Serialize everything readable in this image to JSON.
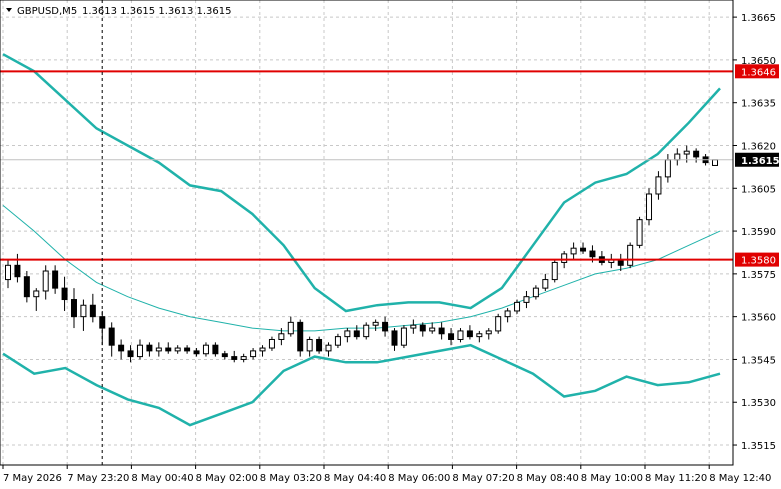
{
  "header": {
    "symbol": "GBPUSD,M5",
    "ohlc": "1.3613 1.3615 1.3613 1.3615",
    "dropdown_icon": "triangle-down-icon"
  },
  "colors": {
    "grid": "#c8c8c8",
    "band": "#20b2aa",
    "level": "#e00000",
    "candle": "#000000",
    "price_label_bg": "#000000"
  },
  "chart_data": {
    "type": "candlestick",
    "ylim": [
      1.3508,
      1.3671
    ],
    "y_ticks": [
      "1.3665",
      "1.3650",
      "1.3635",
      "1.3620",
      "1.3605",
      "1.3590",
      "1.3575",
      "1.3560",
      "1.3545",
      "1.3530",
      "1.3515"
    ],
    "x_ticks": [
      "7 May 2026",
      "7 May 23:20",
      "8 May 00:40",
      "8 May 02:00",
      "8 May 03:20",
      "8 May 04:40",
      "8 May 06:00",
      "8 May 07:20",
      "8 May 08:40",
      "8 May 10:00",
      "8 May 11:20",
      "8 May 12:40"
    ],
    "levels": [
      {
        "value": 1.3646,
        "label": "1.3646"
      },
      {
        "value": 1.358,
        "label": "1.3580"
      }
    ],
    "current_price": {
      "value": 1.3615,
      "label": "1.3615"
    },
    "crosshair_x_label": "7 May 23:20",
    "candles": [
      [
        1.3573,
        1.358,
        1.357,
        1.3578
      ],
      [
        1.3578,
        1.3582,
        1.3572,
        1.3574
      ],
      [
        1.3574,
        1.3576,
        1.3565,
        1.3567
      ],
      [
        1.3567,
        1.357,
        1.3562,
        1.3569
      ],
      [
        1.3569,
        1.3578,
        1.3566,
        1.3576
      ],
      [
        1.3576,
        1.3578,
        1.3568,
        1.357
      ],
      [
        1.357,
        1.3574,
        1.3562,
        1.3566
      ],
      [
        1.3566,
        1.357,
        1.3556,
        1.356
      ],
      [
        1.356,
        1.3566,
        1.3555,
        1.3564
      ],
      [
        1.3564,
        1.3568,
        1.3558,
        1.356
      ],
      [
        1.356,
        1.3562,
        1.355,
        1.3556
      ],
      [
        1.3556,
        1.3558,
        1.3546,
        1.355
      ],
      [
        1.355,
        1.3552,
        1.3545,
        1.3548
      ],
      [
        1.3548,
        1.355,
        1.3544,
        1.3546
      ],
      [
        1.3546,
        1.3552,
        1.3545,
        1.355
      ],
      [
        1.355,
        1.3551,
        1.3546,
        1.3548
      ],
      [
        1.3548,
        1.3551,
        1.3546,
        1.3549
      ],
      [
        1.3549,
        1.3551,
        1.3547,
        1.3548
      ],
      [
        1.3548,
        1.355,
        1.3547,
        1.3549
      ],
      [
        1.3549,
        1.355,
        1.3547,
        1.3548
      ],
      [
        1.3548,
        1.3549,
        1.3546,
        1.3547
      ],
      [
        1.3547,
        1.3551,
        1.3546,
        1.355
      ],
      [
        1.355,
        1.3551,
        1.3546,
        1.3547
      ],
      [
        1.3547,
        1.3548,
        1.3545,
        1.3546
      ],
      [
        1.3546,
        1.3548,
        1.3544,
        1.3545
      ],
      [
        1.3545,
        1.3547,
        1.3544,
        1.3546
      ],
      [
        1.3546,
        1.3549,
        1.3545,
        1.3548
      ],
      [
        1.3548,
        1.355,
        1.3546,
        1.3549
      ],
      [
        1.3549,
        1.3553,
        1.3548,
        1.3552
      ],
      [
        1.3552,
        1.3556,
        1.355,
        1.3554
      ],
      [
        1.3554,
        1.356,
        1.3553,
        1.3558
      ],
      [
        1.3558,
        1.3559,
        1.3546,
        1.3548
      ],
      [
        1.3548,
        1.3553,
        1.3546,
        1.3552
      ],
      [
        1.3552,
        1.3553,
        1.3547,
        1.3548
      ],
      [
        1.3548,
        1.3551,
        1.3546,
        1.355
      ],
      [
        1.355,
        1.3554,
        1.3549,
        1.3553
      ],
      [
        1.3553,
        1.3556,
        1.3551,
        1.3555
      ],
      [
        1.3555,
        1.3557,
        1.3552,
        1.3553
      ],
      [
        1.3553,
        1.3558,
        1.3552,
        1.3557
      ],
      [
        1.3557,
        1.3559,
        1.3555,
        1.3558
      ],
      [
        1.3558,
        1.356,
        1.3553,
        1.3555
      ],
      [
        1.3555,
        1.3556,
        1.3548,
        1.355
      ],
      [
        1.355,
        1.3557,
        1.3549,
        1.3556
      ],
      [
        1.3556,
        1.3559,
        1.3554,
        1.3557
      ],
      [
        1.3557,
        1.3558,
        1.3553,
        1.3555
      ],
      [
        1.3555,
        1.3558,
        1.3554,
        1.3556
      ],
      [
        1.3556,
        1.3558,
        1.3552,
        1.3554
      ],
      [
        1.3554,
        1.3556,
        1.355,
        1.3552
      ],
      [
        1.3552,
        1.3556,
        1.3551,
        1.3555
      ],
      [
        1.3555,
        1.3557,
        1.3552,
        1.3553
      ],
      [
        1.3553,
        1.3555,
        1.3551,
        1.3554
      ],
      [
        1.3554,
        1.3556,
        1.3552,
        1.3555
      ],
      [
        1.3555,
        1.3561,
        1.3554,
        1.356
      ],
      [
        1.356,
        1.3563,
        1.3558,
        1.3562
      ],
      [
        1.3562,
        1.3566,
        1.3561,
        1.3565
      ],
      [
        1.3565,
        1.3569,
        1.3563,
        1.3567
      ],
      [
        1.3567,
        1.3571,
        1.3566,
        1.357
      ],
      [
        1.357,
        1.3575,
        1.3569,
        1.3573
      ],
      [
        1.3573,
        1.358,
        1.3572,
        1.3579
      ],
      [
        1.3579,
        1.3583,
        1.3577,
        1.3582
      ],
      [
        1.3582,
        1.3586,
        1.358,
        1.3584
      ],
      [
        1.3584,
        1.3586,
        1.3582,
        1.3583
      ],
      [
        1.3583,
        1.3585,
        1.3579,
        1.3581
      ],
      [
        1.3581,
        1.3583,
        1.3578,
        1.3579
      ],
      [
        1.3579,
        1.3582,
        1.3577,
        1.358
      ],
      [
        1.358,
        1.3582,
        1.3576,
        1.3578
      ],
      [
        1.3578,
        1.3586,
        1.3577,
        1.3585
      ],
      [
        1.3585,
        1.3595,
        1.3584,
        1.3594
      ],
      [
        1.3594,
        1.3605,
        1.3592,
        1.3603
      ],
      [
        1.3603,
        1.3611,
        1.3601,
        1.3609
      ],
      [
        1.3609,
        1.3617,
        1.3607,
        1.3615
      ],
      [
        1.3615,
        1.3619,
        1.3613,
        1.3617
      ],
      [
        1.3617,
        1.362,
        1.3614,
        1.3618
      ],
      [
        1.3618,
        1.3619,
        1.3614,
        1.3616
      ],
      [
        1.3616,
        1.3617,
        1.3613,
        1.3614
      ],
      [
        1.3613,
        1.3615,
        1.3613,
        1.3615
      ]
    ],
    "bands": {
      "upper": [
        1.3652,
        1.3646,
        1.3636,
        1.3626,
        1.362,
        1.3614,
        1.3606,
        1.3604,
        1.3596,
        1.3585,
        1.357,
        1.3562,
        1.3564,
        1.3565,
        1.3565,
        1.3563,
        1.357,
        1.3585,
        1.36,
        1.3607,
        1.361,
        1.3617,
        1.3628,
        1.364
      ],
      "middle": [
        1.3599,
        1.359,
        1.358,
        1.3572,
        1.3567,
        1.3563,
        1.356,
        1.3558,
        1.3556,
        1.3555,
        1.3555,
        1.3556,
        1.3556,
        1.3557,
        1.3558,
        1.356,
        1.3563,
        1.3567,
        1.3571,
        1.3575,
        1.3577,
        1.358,
        1.3585,
        1.359
      ],
      "lower": [
        1.3547,
        1.354,
        1.3542,
        1.3536,
        1.3531,
        1.3528,
        1.3522,
        1.3526,
        1.353,
        1.3541,
        1.3546,
        1.3544,
        1.3544,
        1.3546,
        1.3548,
        1.355,
        1.3545,
        1.354,
        1.3532,
        1.3534,
        1.3539,
        1.3536,
        1.3537,
        1.354
      ]
    }
  }
}
